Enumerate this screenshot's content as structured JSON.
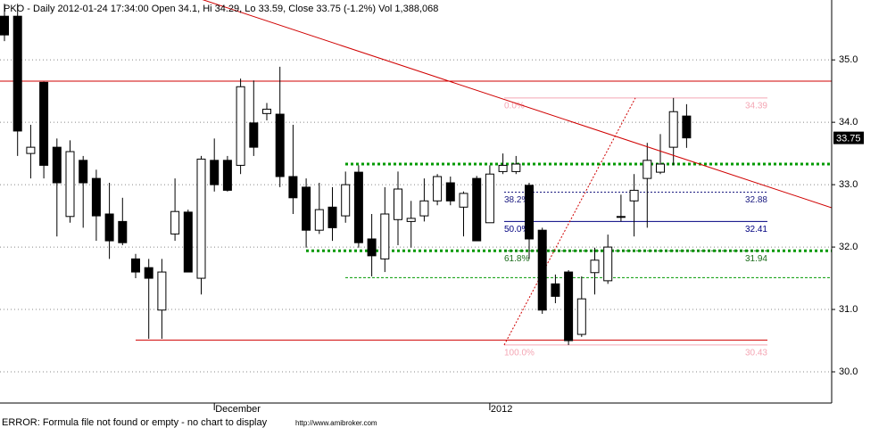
{
  "chart_data": {
    "type": "candlestick",
    "title": "PKO - Daily 2012-01-24 17:34:00 Open 34.1, Hi 34.29, Lo 33.59, Close 33.75 (-1.2%) Vol 1,388,068",
    "categories": [
      null,
      null,
      null,
      null,
      null,
      null,
      null,
      null,
      null,
      null,
      null,
      null,
      null,
      null,
      null,
      null,
      "December",
      null,
      null,
      null,
      null,
      null,
      null,
      null,
      null,
      null,
      null,
      null,
      null,
      null,
      null,
      null,
      null,
      null,
      null,
      null,
      null,
      "2012",
      null,
      null,
      null,
      null,
      null,
      null,
      null,
      null,
      null,
      null,
      null,
      null,
      null,
      null,
      null
    ],
    "open": [
      35.7,
      35.7,
      33.5,
      34.64,
      33.6,
      32.49,
      33.39,
      33.1,
      32.53,
      32.41,
      31.81,
      31.67,
      30.99,
      32.21,
      32.56,
      31.5,
      33.39,
      33.39,
      33.31,
      33.99,
      34.14,
      34.13,
      33.13,
      32.96,
      32.27,
      32.64,
      32.5,
      33.2,
      32.13,
      31.81,
      32.44,
      32.41,
      32.5,
      32.74,
      33.03,
      32.64,
      33.1,
      32.39,
      33.21,
      33.21,
      32.99,
      32.27,
      31.41,
      31.6,
      30.6,
      31.59,
      31.46,
      32.49,
      32.74,
      33.1,
      33.2,
      33.6,
      34.1
    ],
    "high": [
      35.9,
      35.9,
      33.96,
      34.65,
      33.74,
      33.71,
      33.46,
      33.24,
      33.03,
      32.79,
      31.89,
      31.81,
      31.81,
      33.1,
      32.6,
      33.46,
      33.74,
      33.46,
      34.7,
      34.67,
      34.31,
      34.89,
      33.96,
      33.1,
      33.03,
      32.96,
      33.21,
      33.31,
      32.53,
      32.96,
      33.21,
      32.74,
      33.1,
      33.17,
      33.13,
      32.89,
      33.14,
      33.31,
      33.5,
      33.46,
      33.03,
      32.31,
      31.56,
      31.63,
      31.53,
      31.99,
      32.2,
      32.84,
      33.17,
      33.67,
      33.81,
      34.39,
      34.29
    ],
    "low": [
      35.3,
      33.46,
      33.1,
      33.1,
      32.17,
      32.39,
      32.31,
      32.1,
      31.81,
      32.03,
      31.5,
      30.53,
      30.53,
      32.1,
      31.6,
      31.24,
      32.89,
      32.89,
      33.17,
      33.46,
      34.03,
      32.96,
      32.53,
      31.99,
      32.21,
      32.1,
      32.39,
      31.99,
      31.53,
      31.6,
      32.03,
      31.99,
      32.41,
      32.67,
      32.67,
      32.17,
      32.1,
      32.39,
      33.17,
      33.17,
      31.81,
      30.93,
      31.1,
      30.43,
      30.56,
      31.24,
      31.41,
      32.41,
      32.17,
      32.31,
      33.17,
      33.31,
      33.59
    ],
    "close": [
      35.4,
      33.86,
      33.6,
      33.31,
      33.03,
      33.53,
      33.03,
      32.5,
      32.1,
      32.07,
      31.6,
      31.5,
      31.6,
      32.57,
      31.6,
      33.41,
      33.0,
      32.91,
      34.57,
      33.6,
      34.21,
      33.13,
      32.79,
      32.27,
      32.6,
      32.31,
      33.0,
      32.07,
      31.86,
      32.53,
      32.93,
      32.46,
      32.74,
      33.13,
      32.74,
      32.86,
      32.1,
      33.17,
      33.31,
      33.33,
      32.13,
      30.99,
      31.21,
      30.5,
      31.17,
      31.79,
      32.0,
      32.49,
      32.91,
      33.39,
      33.33,
      34.17,
      33.75
    ],
    "up_color": "#ffffff",
    "down_color": "#000000",
    "ylim": [
      29.5,
      35.96
    ],
    "yticks": [
      {
        "value": 30,
        "label": "30.0"
      },
      {
        "value": 31,
        "label": "31.0"
      },
      {
        "value": 32,
        "label": "32.0"
      },
      {
        "value": 33,
        "label": "33.0"
      },
      {
        "value": 34,
        "label": "34.0"
      },
      {
        "value": 35,
        "label": "35.0"
      }
    ],
    "grid": true,
    "trendline": {
      "start": 37.04,
      "end": 32.63,
      "color": "#d00000"
    },
    "levels": [
      {
        "value": 34.66,
        "color": "#d00000",
        "style": "solid"
      },
      {
        "value": 30.51,
        "color": "#d00000",
        "style": "solid"
      },
      {
        "value": 33.33,
        "color": "#009900",
        "style": "dotted"
      },
      {
        "value": 31.94,
        "color": "#009900",
        "style": "dotted"
      },
      {
        "value": 31.51,
        "color": "#009900",
        "style": "dashed"
      }
    ],
    "fib_levels": [
      {
        "label": "0.0%",
        "value": 34.39,
        "color": "#f4a6b4"
      },
      {
        "label": "38.2%",
        "value": 32.88,
        "color": "#1a1a80"
      },
      {
        "label": "50.0%",
        "value": 32.41,
        "color": "#000080"
      },
      {
        "label": "61.8%",
        "value": 31.94,
        "color": "#1a6b1a"
      },
      {
        "label": "100.0%",
        "value": 30.43,
        "color": "#f4a6b4"
      }
    ],
    "footer_error": "ERROR: Formula file not found or empty - no chart to display",
    "watermark": "http://www.amibroker.com"
  }
}
